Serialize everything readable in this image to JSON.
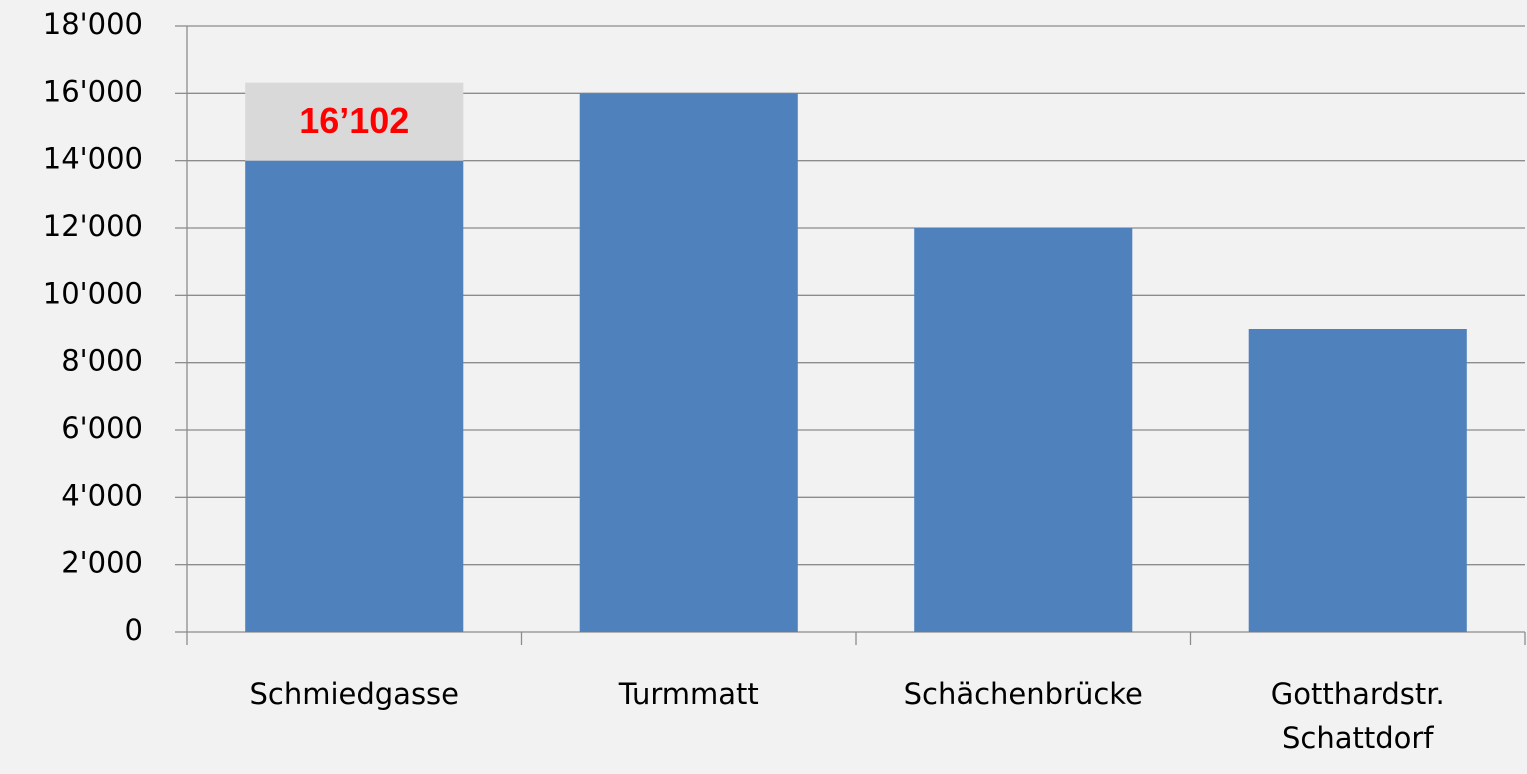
{
  "chart_data": {
    "type": "bar",
    "categories": [
      "Schmiedgasse",
      "Turmmatt",
      "Schächenbrücke",
      "Gotthardstr. Schattdorf"
    ],
    "values": [
      14000,
      16000,
      12000,
      9000
    ],
    "color": "#4f81bd",
    "ylim": [
      0,
      18000
    ],
    "yticks": [
      0,
      {
        "value": 2000,
        "label": "2'000"
      },
      {
        "value": 4000,
        "label": "4'000"
      },
      {
        "value": 6000,
        "label": "6'000"
      },
      {
        "value": 8000,
        "label": "8'000"
      },
      {
        "value": 10000,
        "label": "10'000"
      },
      {
        "value": 12000,
        "label": "12'000"
      },
      {
        "value": 14000,
        "label": "14'000"
      },
      {
        "value": 16000,
        "label": "16'000"
      },
      {
        "value": 18000,
        "label": "18'000"
      }
    ],
    "grid": true,
    "annotation": "16’102"
  }
}
